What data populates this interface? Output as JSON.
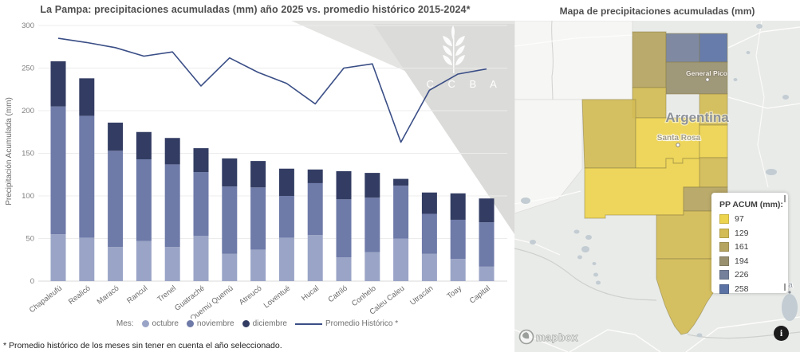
{
  "left_panel": {
    "title": "La Pampa: precipitaciones acumuladas (mm) año 2025 vs. promedio histórico 2015-2024*",
    "y_axis_label": "Precipitación Acumulada (mm)",
    "legend_prefix": "Mes:",
    "line_legend_label": "Promedio Histórico *",
    "footnote": "* Promedio histórico de los meses sin tener en cuenta el año seleccionado.",
    "watermark_letters": "B C C B A"
  },
  "chart_data": {
    "type": "bar",
    "subtype": "stacked-bars-with-line",
    "title": "La Pampa: precipitaciones acumuladas (mm) año 2025 vs. promedio histórico 2015-2024*",
    "xlabel": "",
    "ylabel": "Precipitación Acumulada (mm)",
    "ylim": [
      0,
      300
    ],
    "yticks": [
      0,
      50,
      100,
      150,
      200,
      250,
      300
    ],
    "grid": true,
    "legend_position": "bottom",
    "categories": [
      "Chapaleufú",
      "Realicó",
      "Maracó",
      "Rancul",
      "Trenel",
      "Guatraché",
      "Quemú Quemú",
      "Atreucó",
      "Loventué",
      "Hucal",
      "Catriló",
      "Conhelo",
      "Caleu Caleu",
      "Utracán",
      "Toay",
      "Capital"
    ],
    "series": [
      {
        "name": "octubre",
        "color": "#9aa4c6",
        "values": [
          55,
          51,
          40,
          47,
          40,
          53,
          32,
          37,
          51,
          54,
          28,
          34,
          50,
          32,
          26,
          17
        ]
      },
      {
        "name": "noviembre",
        "color": "#6e7aa8",
        "values": [
          150,
          143,
          113,
          96,
          97,
          75,
          79,
          73,
          49,
          61,
          68,
          64,
          62,
          47,
          46,
          52
        ]
      },
      {
        "name": "diciembre",
        "color": "#333d63",
        "values": [
          53,
          44,
          33,
          32,
          31,
          28,
          33,
          31,
          32,
          16,
          33,
          29,
          8,
          25,
          31,
          28
        ]
      }
    ],
    "bar_totals": [
      258,
      238,
      186,
      175,
      168,
      156,
      144,
      141,
      132,
      131,
      129,
      127,
      120,
      104,
      103,
      97
    ],
    "line_series": {
      "name": "Promedio Histórico *",
      "color": "#3a4e86",
      "values": [
        285,
        280,
        274,
        264,
        269,
        229,
        262,
        245,
        232,
        208,
        250,
        255,
        163,
        224,
        243,
        249
      ]
    }
  },
  "map_panel": {
    "title": "Mapa de precipitaciones acumuladas (mm)",
    "country_label": "Argentina",
    "city_general_pico": "General Pico",
    "city_santa_rosa": "Santa Rosa",
    "partial_city_label": "a Bla",
    "attribution": "mapbox",
    "info_label": "i",
    "legend": {
      "title": "PP ACUM (mm):",
      "entries": [
        {
          "value": "97",
          "key": "c97"
        },
        {
          "value": "129",
          "key": "c129"
        },
        {
          "value": "161",
          "key": "c161"
        },
        {
          "value": "194",
          "key": "c194"
        },
        {
          "value": "226",
          "key": "c226"
        },
        {
          "value": "258",
          "key": "c258"
        }
      ]
    },
    "colors": {
      "c97": "#edd44e",
      "c129": "#d3bc55",
      "c161": "#b5a45f",
      "c194": "#98906f",
      "c226": "#75819b",
      "c258": "#5b72a4"
    }
  }
}
